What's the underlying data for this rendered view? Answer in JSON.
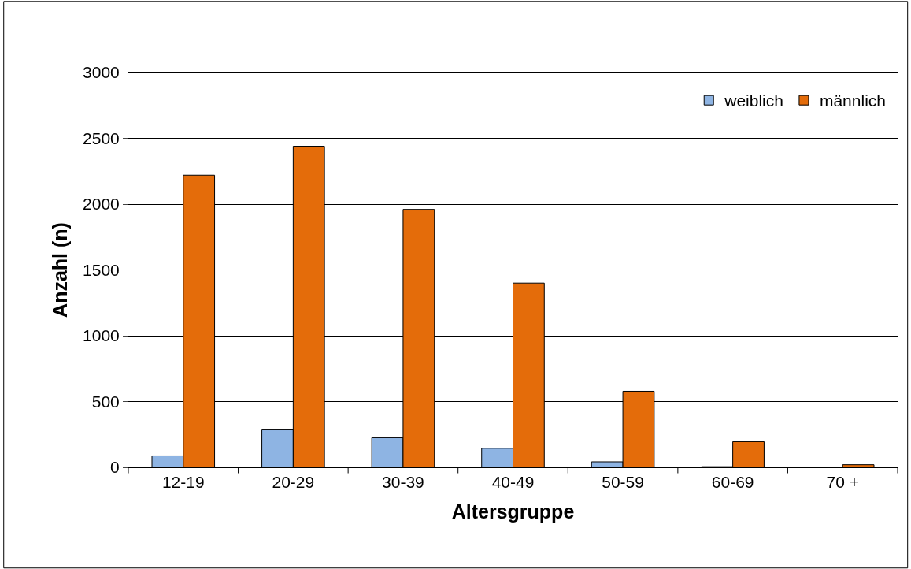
{
  "chart_data": {
    "type": "bar",
    "xlabel": "Altersgruppe",
    "ylabel": "Anzahl (n)",
    "categories": [
      "12-19",
      "20-29",
      "30-39",
      "40-49",
      "50-59",
      "60-69",
      "70 +"
    ],
    "series": [
      {
        "name": "weiblich",
        "color": "#8eb4e3",
        "values": [
          87,
          290,
          225,
          145,
          42,
          5,
          null
        ]
      },
      {
        "name": "männlich",
        "color": "#e46c0a",
        "values": [
          2220,
          2440,
          1960,
          1400,
          578,
          195,
          20
        ]
      }
    ],
    "ylim": [
      0,
      3000
    ],
    "yticks": [
      0,
      500,
      1000,
      1500,
      2000,
      2500,
      3000
    ],
    "grid": "y",
    "legend": "top right"
  }
}
